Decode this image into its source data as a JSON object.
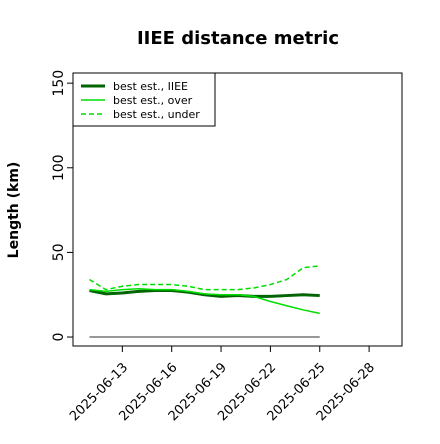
{
  "chart_data": {
    "type": "line",
    "title": "IIEE distance metric",
    "y_label": "Length (km)",
    "x": [
      "2025-06-11",
      "2025-06-12",
      "2025-06-13",
      "2025-06-14",
      "2025-06-15",
      "2025-06-16",
      "2025-06-17",
      "2025-06-18",
      "2025-06-19",
      "2025-06-20",
      "2025-06-21",
      "2025-06-22",
      "2025-06-23",
      "2025-06-24",
      "2025-06-25"
    ],
    "series": [
      {
        "name": "best est., IIEE",
        "color": "#006400",
        "width": 3,
        "dash": "none",
        "values": [
          27.5,
          25.5,
          26,
          27,
          27.5,
          27.5,
          26.5,
          25,
          24,
          24.5,
          24,
          24,
          24.5,
          25,
          24.5
        ]
      },
      {
        "name": "best est., over",
        "color": "#00dd00",
        "width": 1.5,
        "dash": "none",
        "values": [
          28,
          27,
          28,
          28.5,
          28,
          28,
          27,
          25.5,
          25,
          25,
          24,
          21,
          18.5,
          16,
          14
        ]
      },
      {
        "name": "best est., under",
        "color": "#00dd00",
        "width": 1.5,
        "dash": "5,3",
        "values": [
          34,
          28,
          30,
          31,
          31,
          31,
          30,
          28,
          28,
          28,
          29,
          31,
          34,
          41,
          42
        ]
      }
    ],
    "reference_line": {
      "value": 0,
      "color": "#777777"
    },
    "xlim": [
      "2025-06-10",
      "2025-06-30"
    ],
    "xticks": [
      "2025-06-13",
      "2025-06-16",
      "2025-06-19",
      "2025-06-22",
      "2025-06-25",
      "2025-06-28"
    ],
    "ylim": [
      -5.3,
      156
    ],
    "yticks": [
      0,
      50,
      100,
      150
    ],
    "legend": "top-left"
  }
}
